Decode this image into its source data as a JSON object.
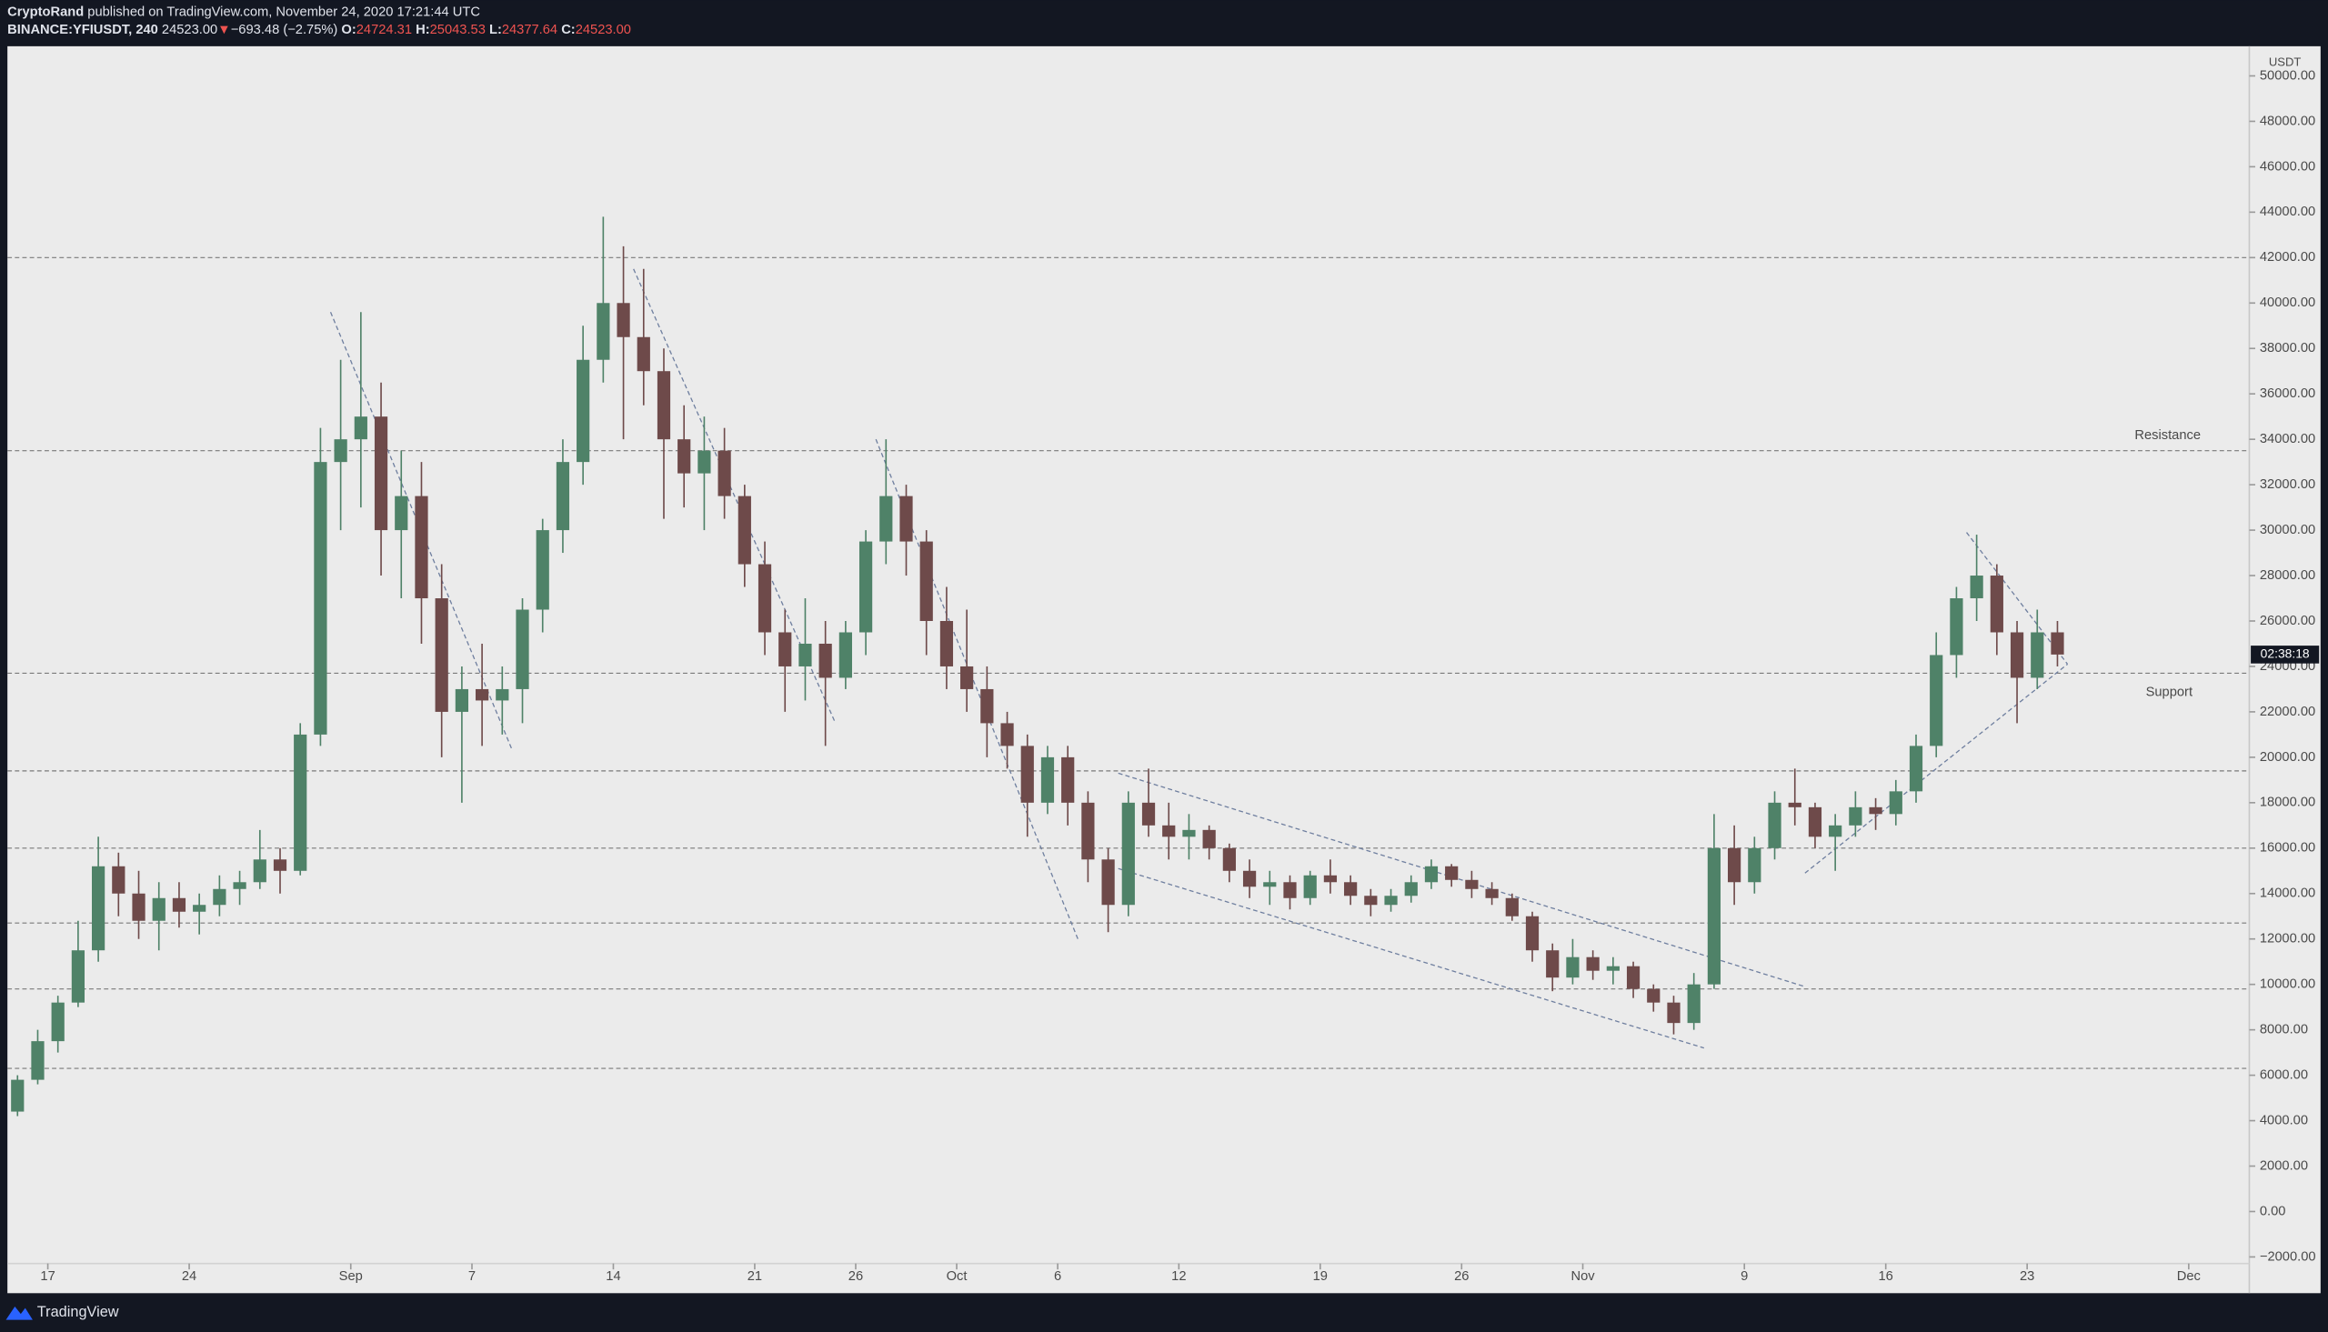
{
  "header": {
    "author": "CryptoRand",
    "published": " published on TradingView.com, November 24, 2020 17:21:44 UTC",
    "symbol": "BINANCE:YFIUSDT, 240",
    "price": "24523.00",
    "arrow": "▼",
    "change": "−693.48 (−2.75%)",
    "o_label": "O:",
    "o": "24724.31",
    "h_label": "H:",
    "h": "25043.53",
    "l_label": "L:",
    "l": "24377.64",
    "c_label": "C:",
    "c": "24523.00"
  },
  "footer": {
    "brand": "TradingView"
  },
  "chart_data": {
    "type": "candlestick",
    "unit": "USDT",
    "countdown": "02:38:18",
    "up_color": "#4f8268",
    "down_color": "#6e4a4a",
    "line_color": "#6f7f9f",
    "x": [
      "2020-08-15",
      "2020-08-16",
      "2020-08-17",
      "2020-08-18",
      "2020-08-19",
      "2020-08-20",
      "2020-08-21",
      "2020-08-22",
      "2020-08-23",
      "2020-08-24",
      "2020-08-25",
      "2020-08-26",
      "2020-08-27",
      "2020-08-28",
      "2020-08-29",
      "2020-08-30",
      "2020-08-31",
      "2020-09-01",
      "2020-09-02",
      "2020-09-03",
      "2020-09-04",
      "2020-09-05",
      "2020-09-06",
      "2020-09-07",
      "2020-09-08",
      "2020-09-09",
      "2020-09-10",
      "2020-09-11",
      "2020-09-12",
      "2020-09-13",
      "2020-09-14",
      "2020-09-15",
      "2020-09-16",
      "2020-09-17",
      "2020-09-18",
      "2020-09-19",
      "2020-09-20",
      "2020-09-21",
      "2020-09-22",
      "2020-09-23",
      "2020-09-24",
      "2020-09-25",
      "2020-09-26",
      "2020-09-27",
      "2020-09-28",
      "2020-09-29",
      "2020-09-30",
      "2020-10-01",
      "2020-10-02",
      "2020-10-03",
      "2020-10-04",
      "2020-10-05",
      "2020-10-06",
      "2020-10-07",
      "2020-10-08",
      "2020-10-09",
      "2020-10-10",
      "2020-10-11",
      "2020-10-12",
      "2020-10-13",
      "2020-10-14",
      "2020-10-15",
      "2020-10-16",
      "2020-10-17",
      "2020-10-18",
      "2020-10-19",
      "2020-10-20",
      "2020-10-21",
      "2020-10-22",
      "2020-10-23",
      "2020-10-24",
      "2020-10-25",
      "2020-10-26",
      "2020-10-27",
      "2020-10-28",
      "2020-10-29",
      "2020-10-30",
      "2020-10-31",
      "2020-11-01",
      "2020-11-02",
      "2020-11-03",
      "2020-11-04",
      "2020-11-05",
      "2020-11-06",
      "2020-11-07",
      "2020-11-08",
      "2020-11-09",
      "2020-11-10",
      "2020-11-11",
      "2020-11-12",
      "2020-11-13",
      "2020-11-14",
      "2020-11-15",
      "2020-11-16",
      "2020-11-17",
      "2020-11-18",
      "2020-11-19",
      "2020-11-20",
      "2020-11-21",
      "2020-11-22",
      "2020-11-23",
      "2020-11-24"
    ],
    "open": [
      4400,
      5800,
      7500,
      9200,
      11500,
      15200,
      14000,
      12800,
      13800,
      13200,
      13500,
      14200,
      14500,
      15500,
      15000,
      21000,
      33000,
      34000,
      35000,
      30000,
      31500,
      27000,
      22000,
      23000,
      22500,
      23000,
      26500,
      30000,
      33000,
      37500,
      40000,
      38500,
      37000,
      34000,
      32500,
      33500,
      31500,
      28500,
      25500,
      24000,
      25000,
      23500,
      25500,
      29500,
      31500,
      29500,
      26000,
      24000,
      23000,
      21500,
      20500,
      18000,
      20000,
      18000,
      15500,
      13500,
      18000,
      17000,
      16500,
      16800,
      16000,
      15000,
      14300,
      14500,
      13800,
      14800,
      14500,
      13900,
      13500,
      13900,
      14500,
      15200,
      14600,
      14200,
      13800,
      13000,
      11500,
      10300,
      11200,
      10600,
      10800,
      9800,
      9200,
      8300,
      10000,
      16000,
      14500,
      16000,
      18000,
      17800,
      16500,
      17000,
      17800,
      17500,
      18500,
      20500,
      24500,
      27000,
      28000,
      25500,
      23500,
      25500
    ],
    "high": [
      6000,
      8000,
      9500,
      12800,
      16500,
      15800,
      15000,
      14500,
      14500,
      14000,
      14800,
      15000,
      16800,
      16000,
      21500,
      34500,
      37500,
      39600,
      36500,
      33500,
      33000,
      28500,
      24000,
      25000,
      24000,
      27000,
      30500,
      34000,
      39000,
      43800,
      42500,
      41500,
      38000,
      35500,
      35000,
      34500,
      32000,
      29500,
      26500,
      27000,
      26000,
      26000,
      30000,
      34000,
      32000,
      30000,
      27500,
      26500,
      24000,
      22000,
      21000,
      20500,
      20500,
      18500,
      16000,
      18500,
      19500,
      18000,
      17500,
      17000,
      16200,
      15500,
      15000,
      14800,
      15000,
      15500,
      14800,
      14200,
      14200,
      14800,
      15500,
      15300,
      15000,
      14500,
      14000,
      13200,
      11800,
      12000,
      11500,
      11200,
      11000,
      10000,
      9500,
      10500,
      17500,
      17000,
      16500,
      18500,
      19500,
      18000,
      17500,
      18500,
      18200,
      19000,
      21000,
      25500,
      27500,
      29800,
      28500,
      26000,
      26500,
      26000
    ],
    "low": [
      4200,
      5600,
      7000,
      9000,
      11000,
      13000,
      12000,
      11500,
      12500,
      12200,
      13000,
      13500,
      14200,
      14000,
      14800,
      20500,
      30000,
      31000,
      28000,
      27000,
      25000,
      20000,
      18000,
      20500,
      21000,
      21500,
      25500,
      29000,
      32000,
      36500,
      34000,
      35500,
      30500,
      31000,
      30000,
      30500,
      27500,
      24500,
      22000,
      22500,
      20500,
      23000,
      24500,
      28500,
      28000,
      24500,
      23000,
      22000,
      20000,
      19500,
      16500,
      17500,
      17000,
      14500,
      12300,
      13000,
      16500,
      15500,
      15500,
      15500,
      14500,
      13800,
      13500,
      13300,
      13500,
      14000,
      13500,
      13000,
      13200,
      13600,
      14200,
      14300,
      13800,
      13500,
      12800,
      11000,
      9700,
      10000,
      10200,
      10000,
      9400,
      8800,
      7800,
      8000,
      9800,
      13500,
      14000,
      15500,
      17000,
      16000,
      15000,
      16500,
      16800,
      17000,
      18000,
      20000,
      23500,
      26000,
      24500,
      21500,
      23000,
      24000
    ],
    "close": [
      5800,
      7500,
      9200,
      11500,
      15200,
      14000,
      12800,
      13800,
      13200,
      13500,
      14200,
      14500,
      15500,
      15000,
      21000,
      33000,
      34000,
      35000,
      30000,
      31500,
      27000,
      22000,
      23000,
      22500,
      23000,
      26500,
      30000,
      33000,
      37500,
      40000,
      38500,
      37000,
      34000,
      32500,
      33500,
      31500,
      28500,
      25500,
      24000,
      25000,
      23500,
      25500,
      29500,
      31500,
      29500,
      26000,
      24000,
      23000,
      21500,
      20500,
      18000,
      20000,
      18000,
      15500,
      13500,
      18000,
      17000,
      16500,
      16800,
      16000,
      15000,
      14300,
      14500,
      13800,
      14800,
      14500,
      13900,
      13500,
      13900,
      14500,
      15200,
      14600,
      14200,
      13800,
      13000,
      11500,
      10300,
      11200,
      10600,
      10800,
      9800,
      9200,
      8300,
      10000,
      16000,
      14500,
      16000,
      18000,
      17800,
      16500,
      17000,
      17800,
      17500,
      18500,
      20500,
      24500,
      27000,
      28000,
      25500,
      23500,
      25500,
      24523
    ],
    "levels": [
      42000,
      33500,
      23700,
      19400,
      16000,
      12700,
      9800,
      6300
    ],
    "annotations": [
      "Resistance",
      "Support"
    ],
    "trendlines": [
      {
        "x": [
          "2020-08-31",
          "2020-09-09"
        ],
        "y": [
          39600,
          20300
        ]
      },
      {
        "x": [
          "2020-09-15",
          "2020-09-25"
        ],
        "y": [
          41500,
          21500
        ]
      },
      {
        "x": [
          "2020-09-27",
          "2020-10-07"
        ],
        "y": [
          34000,
          12000
        ]
      },
      {
        "x": [
          "2020-10-09",
          "2020-11-12"
        ],
        "y": [
          19300,
          9900
        ]
      },
      {
        "x": [
          "2020-10-09",
          "2020-11-07"
        ],
        "y": [
          15100,
          7200
        ]
      },
      {
        "x": [
          "2020-11-20",
          "2020-11-25"
        ],
        "y": [
          29900,
          24100
        ]
      },
      {
        "x": [
          "2020-11-12",
          "2020-11-25"
        ],
        "y": [
          14900,
          24100
        ]
      }
    ],
    "xlim": [
      "2020-08-15",
      "2020-12-04"
    ],
    "xticks": [
      {
        "value": "2020-08-17",
        "label": "17"
      },
      {
        "value": "2020-08-24",
        "label": "24"
      },
      {
        "value": "2020-09-01",
        "label": "Sep"
      },
      {
        "value": "2020-09-07",
        "label": "7"
      },
      {
        "value": "2020-09-14",
        "label": "14"
      },
      {
        "value": "2020-09-21",
        "label": "21"
      },
      {
        "value": "2020-09-26",
        "label": "26"
      },
      {
        "value": "2020-10-01",
        "label": "Oct"
      },
      {
        "value": "2020-10-06",
        "label": "6"
      },
      {
        "value": "2020-10-12",
        "label": "12"
      },
      {
        "value": "2020-10-19",
        "label": "19"
      },
      {
        "value": "2020-10-26",
        "label": "26"
      },
      {
        "value": "2020-11-01",
        "label": "Nov"
      },
      {
        "value": "2020-11-09",
        "label": "9"
      },
      {
        "value": "2020-11-16",
        "label": "16"
      },
      {
        "value": "2020-11-23",
        "label": "23"
      },
      {
        "value": "2020-12-01",
        "label": "Dec"
      }
    ],
    "ylim": [
      -3530,
      51240
    ],
    "yticks": [
      {
        "value": -2000,
        "label": "−2000.00"
      },
      {
        "value": 0,
        "label": "0.00"
      },
      {
        "value": 2000,
        "label": "2000.00"
      },
      {
        "value": 4000,
        "label": "4000.00"
      },
      {
        "value": 6000,
        "label": "6000.00"
      },
      {
        "value": 8000,
        "label": "8000.00"
      },
      {
        "value": 10000,
        "label": "10000.00"
      },
      {
        "value": 12000,
        "label": "12000.00"
      },
      {
        "value": 14000,
        "label": "14000.00"
      },
      {
        "value": 16000,
        "label": "16000.00"
      },
      {
        "value": 18000,
        "label": "18000.00"
      },
      {
        "value": 20000,
        "label": "20000.00"
      },
      {
        "value": 22000,
        "label": "22000.00"
      },
      {
        "value": 24000,
        "label": "24000.00"
      },
      {
        "value": 26000,
        "label": "26000.00"
      },
      {
        "value": 28000,
        "label": "28000.00"
      },
      {
        "value": 30000,
        "label": "30000.00"
      },
      {
        "value": 32000,
        "label": "32000.00"
      },
      {
        "value": 34000,
        "label": "34000.00"
      },
      {
        "value": 36000,
        "label": "36000.00"
      },
      {
        "value": 38000,
        "label": "38000.00"
      },
      {
        "value": 40000,
        "label": "40000.00"
      },
      {
        "value": 42000,
        "label": "42000.00"
      },
      {
        "value": 44000,
        "label": "44000.00"
      },
      {
        "value": 46000,
        "label": "46000.00"
      },
      {
        "value": 48000,
        "label": "48000.00"
      },
      {
        "value": 50000,
        "label": "50000.00"
      }
    ]
  }
}
